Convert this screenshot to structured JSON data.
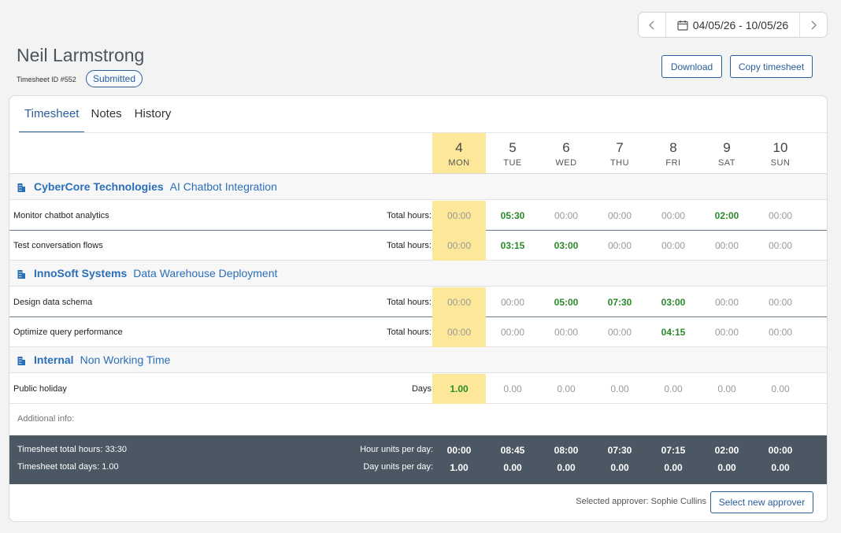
{
  "date_range": "04/05/26 - 10/05/26",
  "user_name": "Neil Larmstrong",
  "timesheet_id": "Timesheet ID #552",
  "status": "Submitted",
  "actions": {
    "download": "Download",
    "copy": "Copy timesheet"
  },
  "tabs": [
    "Timesheet",
    "Notes",
    "History"
  ],
  "days": [
    {
      "num": "4",
      "name": "MON"
    },
    {
      "num": "5",
      "name": "TUE"
    },
    {
      "num": "6",
      "name": "WED"
    },
    {
      "num": "7",
      "name": "THU"
    },
    {
      "num": "8",
      "name": "FRI"
    },
    {
      "num": "9",
      "name": "SAT"
    },
    {
      "num": "10",
      "name": "SUN"
    }
  ],
  "groups": [
    {
      "client": "CyberCore Technologies",
      "project": "AI Chatbot Integration",
      "tasks": [
        {
          "name": "Monitor chatbot analytics",
          "label": "Total hours:",
          "values": [
            "00:00",
            "05:30",
            "00:00",
            "00:00",
            "00:00",
            "02:00",
            "00:00"
          ]
        },
        {
          "name": "Test conversation flows",
          "label": "Total hours:",
          "values": [
            "00:00",
            "03:15",
            "03:00",
            "00:00",
            "00:00",
            "00:00",
            "00:00"
          ]
        }
      ]
    },
    {
      "client": "InnoSoft Systems",
      "project": "Data Warehouse Deployment",
      "tasks": [
        {
          "name": "Design data schema",
          "label": "Total hours:",
          "values": [
            "00:00",
            "00:00",
            "05:00",
            "07:30",
            "03:00",
            "00:00",
            "00:00"
          ]
        },
        {
          "name": "Optimize query performance",
          "label": "Total hours:",
          "values": [
            "00:00",
            "00:00",
            "00:00",
            "00:00",
            "04:15",
            "00:00",
            "00:00"
          ]
        }
      ]
    },
    {
      "client": "Internal",
      "project": "Non Working Time",
      "tasks": [
        {
          "name": "Public holiday",
          "label": "Days",
          "values": [
            "1.00",
            "0.00",
            "0.00",
            "0.00",
            "0.00",
            "0.00",
            "0.00"
          ]
        }
      ]
    }
  ],
  "additional_info": "Additional info:",
  "footer": {
    "total_hours": "Timesheet total hours: 33:30",
    "total_days": "Timesheet total days: 1.00",
    "hour_units_label": "Hour units per day:",
    "day_units_label": "Day units per day:",
    "hour_units": [
      "00:00",
      "08:45",
      "08:00",
      "07:30",
      "07:15",
      "02:00",
      "00:00"
    ],
    "day_units": [
      "1.00",
      "0.00",
      "0.00",
      "0.00",
      "0.00",
      "0.00",
      "0.00"
    ]
  },
  "approver_text": "Selected approver: Sophie Cullins",
  "select_approver": "Select new approver",
  "colors": {
    "accent": "#2a5d9a",
    "today": "#fde89a",
    "positive": "#2b8a2b",
    "footer": "#4b5763"
  }
}
